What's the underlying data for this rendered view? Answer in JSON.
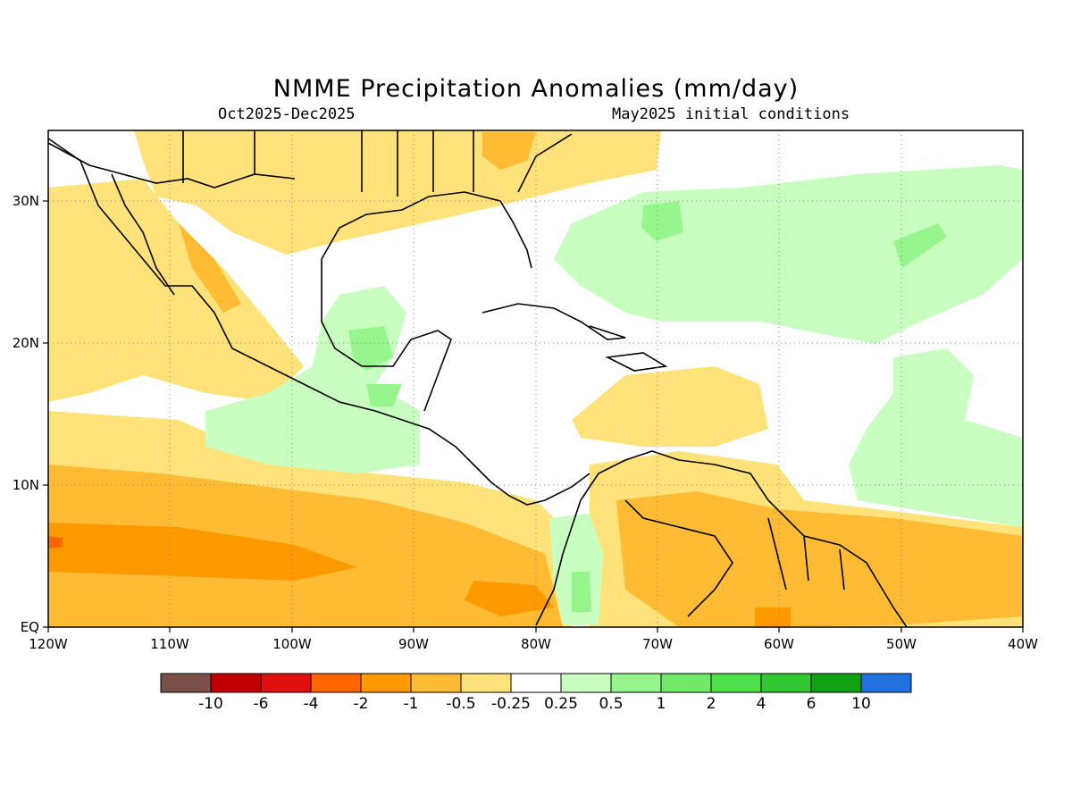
{
  "title": "NMME Precipitation Anomalies (mm/day)",
  "subtitle_left": "Oct2025-Dec2025",
  "subtitle_right": "May2025 initial conditions",
  "map": {
    "lon_range": [
      -120,
      -40
    ],
    "lat_range": [
      0,
      35
    ],
    "lon_ticks": [
      {
        "value": -120,
        "label": "120W"
      },
      {
        "value": -110,
        "label": "110W"
      },
      {
        "value": -100,
        "label": "100W"
      },
      {
        "value": -90,
        "label": "90W"
      },
      {
        "value": -80,
        "label": "80W"
      },
      {
        "value": -70,
        "label": "70W"
      },
      {
        "value": -60,
        "label": "60W"
      },
      {
        "value": -50,
        "label": "50W"
      },
      {
        "value": -40,
        "label": "40W"
      }
    ],
    "lat_ticks": [
      {
        "value": 0,
        "label": "EQ"
      },
      {
        "value": 10,
        "label": "10N"
      },
      {
        "value": 20,
        "label": "20N"
      },
      {
        "value": 30,
        "label": "30N"
      }
    ],
    "grid": "dotted"
  },
  "colorbar": {
    "colors": [
      "#7a5048",
      "#c00000",
      "#e01010",
      "#ff6600",
      "#ff9900",
      "#ffbb33",
      "#ffe27a",
      "#ffffff",
      "#c8ffc0",
      "#96f58c",
      "#70ea68",
      "#4ee048",
      "#32c832",
      "#10a010",
      "#2070e0"
    ],
    "labels": [
      "-10",
      "-6",
      "-4",
      "-2",
      "-1",
      "-0.5",
      "-0.25",
      "0.25",
      "0.5",
      "1",
      "2",
      "4",
      "6",
      "10"
    ]
  }
}
